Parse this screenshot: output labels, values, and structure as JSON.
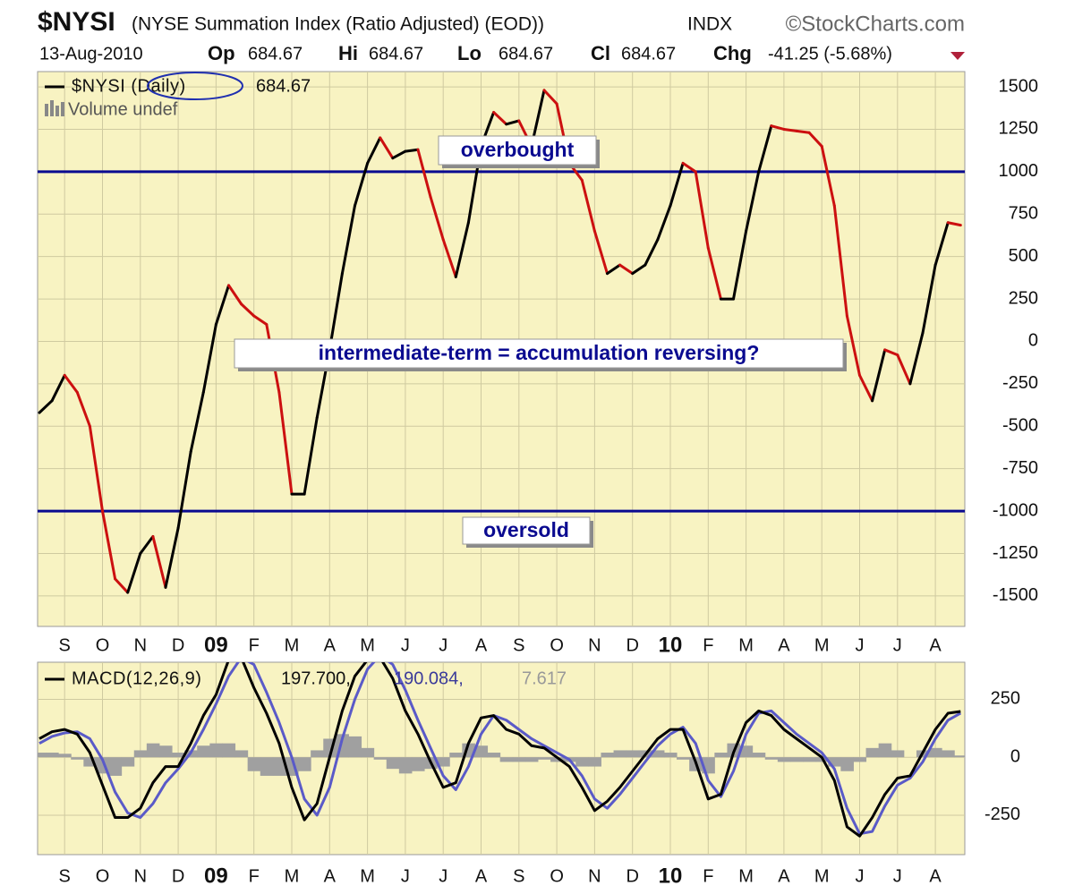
{
  "header": {
    "symbol": "$NYSI",
    "description": "(NYSE Summation Index (Ratio Adjusted) (EOD))",
    "exchange": "INDX",
    "source": "©StockCharts.com",
    "date": "13-Aug-2010",
    "quote": [
      {
        "label": "Op",
        "value": 684.67
      },
      {
        "label": "Hi",
        "value": 684.67
      },
      {
        "label": "Lo",
        "value": 684.67
      },
      {
        "label": "Cl",
        "value": 684.67
      }
    ],
    "change_label": "Chg",
    "change": "-41.25 (-5.68%)"
  },
  "chart_data": [
    {
      "type": "line",
      "legend_value": 684.67,
      "volume_label": "Volume undef",
      "categories": [
        null,
        null,
        "S",
        null,
        null,
        "O",
        null,
        null,
        "N",
        null,
        null,
        "D",
        null,
        null,
        "09",
        null,
        null,
        "F",
        null,
        null,
        "M",
        null,
        null,
        "A",
        null,
        null,
        "M",
        null,
        null,
        "J",
        null,
        null,
        "J",
        null,
        null,
        "A",
        null,
        null,
        "S",
        null,
        null,
        "O",
        null,
        null,
        "N",
        null,
        null,
        "D",
        null,
        null,
        "10",
        null,
        null,
        "F",
        null,
        null,
        "M",
        null,
        null,
        "A",
        null,
        null,
        "M",
        null,
        null,
        "J",
        null,
        null,
        "J",
        null,
        null,
        "A",
        null,
        null
      ],
      "series": [
        {
          "name": "$NYSI (Daily)",
          "color": "#000000",
          "down_color": "#cc1010",
          "values": [
            -420,
            -350,
            -200,
            -300,
            -500,
            -1000,
            -1400,
            -1480,
            -1250,
            -1150,
            -1450,
            -1100,
            -650,
            -300,
            100,
            330,
            220,
            150,
            100,
            -300,
            -900,
            -900,
            -450,
            -50,
            400,
            800,
            1050,
            1200,
            1080,
            1120,
            1130,
            850,
            600,
            380,
            700,
            1150,
            1350,
            1280,
            1300,
            1150,
            1480,
            1400,
            1050,
            950,
            650,
            400,
            450,
            400,
            450,
            600,
            800,
            1050,
            1000,
            550,
            250,
            250,
            650,
            1000,
            1270,
            1250,
            1240,
            1230,
            1150,
            800,
            150,
            -200,
            -350,
            -50,
            -80,
            -250,
            50,
            450,
            700,
            684.67
          ]
        }
      ],
      "ylim": [
        -1680,
        1590
      ],
      "yticks": [
        -1500,
        -1250,
        -1000,
        -750,
        -500,
        -250,
        0,
        250,
        500,
        750,
        1000,
        1250,
        1500
      ],
      "grid": true,
      "reference_lines": [
        {
          "value": 1000,
          "label": "overbought",
          "color": "#0a0a90"
        },
        {
          "value": -1000,
          "label": "oversold",
          "color": "#0a0a90"
        }
      ],
      "annotations": [
        "intermediate-term = accumulation reversing?"
      ]
    },
    {
      "type": "macd",
      "categories": [
        null,
        null,
        "S",
        null,
        null,
        "O",
        null,
        null,
        "N",
        null,
        null,
        "D",
        null,
        null,
        "09",
        null,
        null,
        "F",
        null,
        null,
        "M",
        null,
        null,
        "A",
        null,
        null,
        "M",
        null,
        null,
        "J",
        null,
        null,
        "J",
        null,
        null,
        "A",
        null,
        null,
        "S",
        null,
        null,
        "O",
        null,
        null,
        "N",
        null,
        null,
        "D",
        null,
        null,
        "10",
        null,
        null,
        "F",
        null,
        null,
        "M",
        null,
        null,
        "A",
        null,
        null,
        "M",
        null,
        null,
        "J",
        null,
        null,
        "J",
        null,
        null,
        "A",
        null,
        null
      ],
      "series": [
        {
          "name": "MACD(12,26,9)",
          "color": "#000000",
          "style": "line",
          "readout": "197.700,",
          "values": [
            80,
            110,
            120,
            100,
            20,
            -120,
            -260,
            -260,
            -220,
            -110,
            -40,
            -40,
            60,
            180,
            270,
            420,
            430,
            300,
            190,
            60,
            -130,
            -270,
            -200,
            0,
            200,
            350,
            420,
            430,
            340,
            200,
            100,
            -20,
            -130,
            -110,
            60,
            170,
            180,
            120,
            100,
            50,
            40,
            0,
            -40,
            -130,
            -230,
            -190,
            -130,
            -60,
            10,
            80,
            120,
            120,
            -20,
            -180,
            -160,
            20,
            150,
            200,
            180,
            120,
            80,
            40,
            0,
            -100,
            -300,
            -340,
            -260,
            -160,
            -90,
            -80,
            20,
            120,
            190,
            197.7
          ]
        },
        {
          "color": "#5a5ac8",
          "style": "line",
          "readout": "190.084,",
          "values": [
            60,
            90,
            105,
            110,
            80,
            -10,
            -150,
            -240,
            -260,
            -200,
            -110,
            -50,
            20,
            120,
            230,
            350,
            430,
            400,
            280,
            150,
            0,
            -180,
            -250,
            -130,
            80,
            250,
            380,
            440,
            400,
            290,
            160,
            40,
            -80,
            -140,
            -40,
            100,
            180,
            160,
            120,
            80,
            50,
            20,
            -10,
            -80,
            -180,
            -220,
            -160,
            -90,
            -20,
            50,
            100,
            130,
            60,
            -100,
            -170,
            -60,
            100,
            190,
            200,
            150,
            100,
            60,
            20,
            -50,
            -220,
            -330,
            -320,
            -210,
            -120,
            -90,
            -20,
            80,
            160,
            190.084
          ]
        },
        {
          "color": "#a0a0a0",
          "style": "histogram",
          "readout": "7.617",
          "values": [
            20,
            20,
            15,
            -10,
            -40,
            -70,
            -80,
            -40,
            30,
            60,
            50,
            20,
            30,
            50,
            60,
            60,
            30,
            -60,
            -80,
            -80,
            -80,
            -60,
            30,
            80,
            100,
            90,
            40,
            -10,
            -50,
            -70,
            -60,
            -50,
            -40,
            20,
            60,
            50,
            20,
            -20,
            -20,
            -20,
            -10,
            -20,
            -20,
            -40,
            -40,
            20,
            30,
            30,
            30,
            30,
            20,
            -10,
            -60,
            -70,
            20,
            60,
            50,
            20,
            -10,
            -20,
            -20,
            -20,
            -20,
            -40,
            -60,
            -20,
            40,
            60,
            30,
            0,
            30,
            40,
            30,
            7.617
          ]
        }
      ],
      "ylim": [
        -420,
        410
      ],
      "yticks": [
        -250,
        0,
        250
      ],
      "grid": true
    }
  ]
}
